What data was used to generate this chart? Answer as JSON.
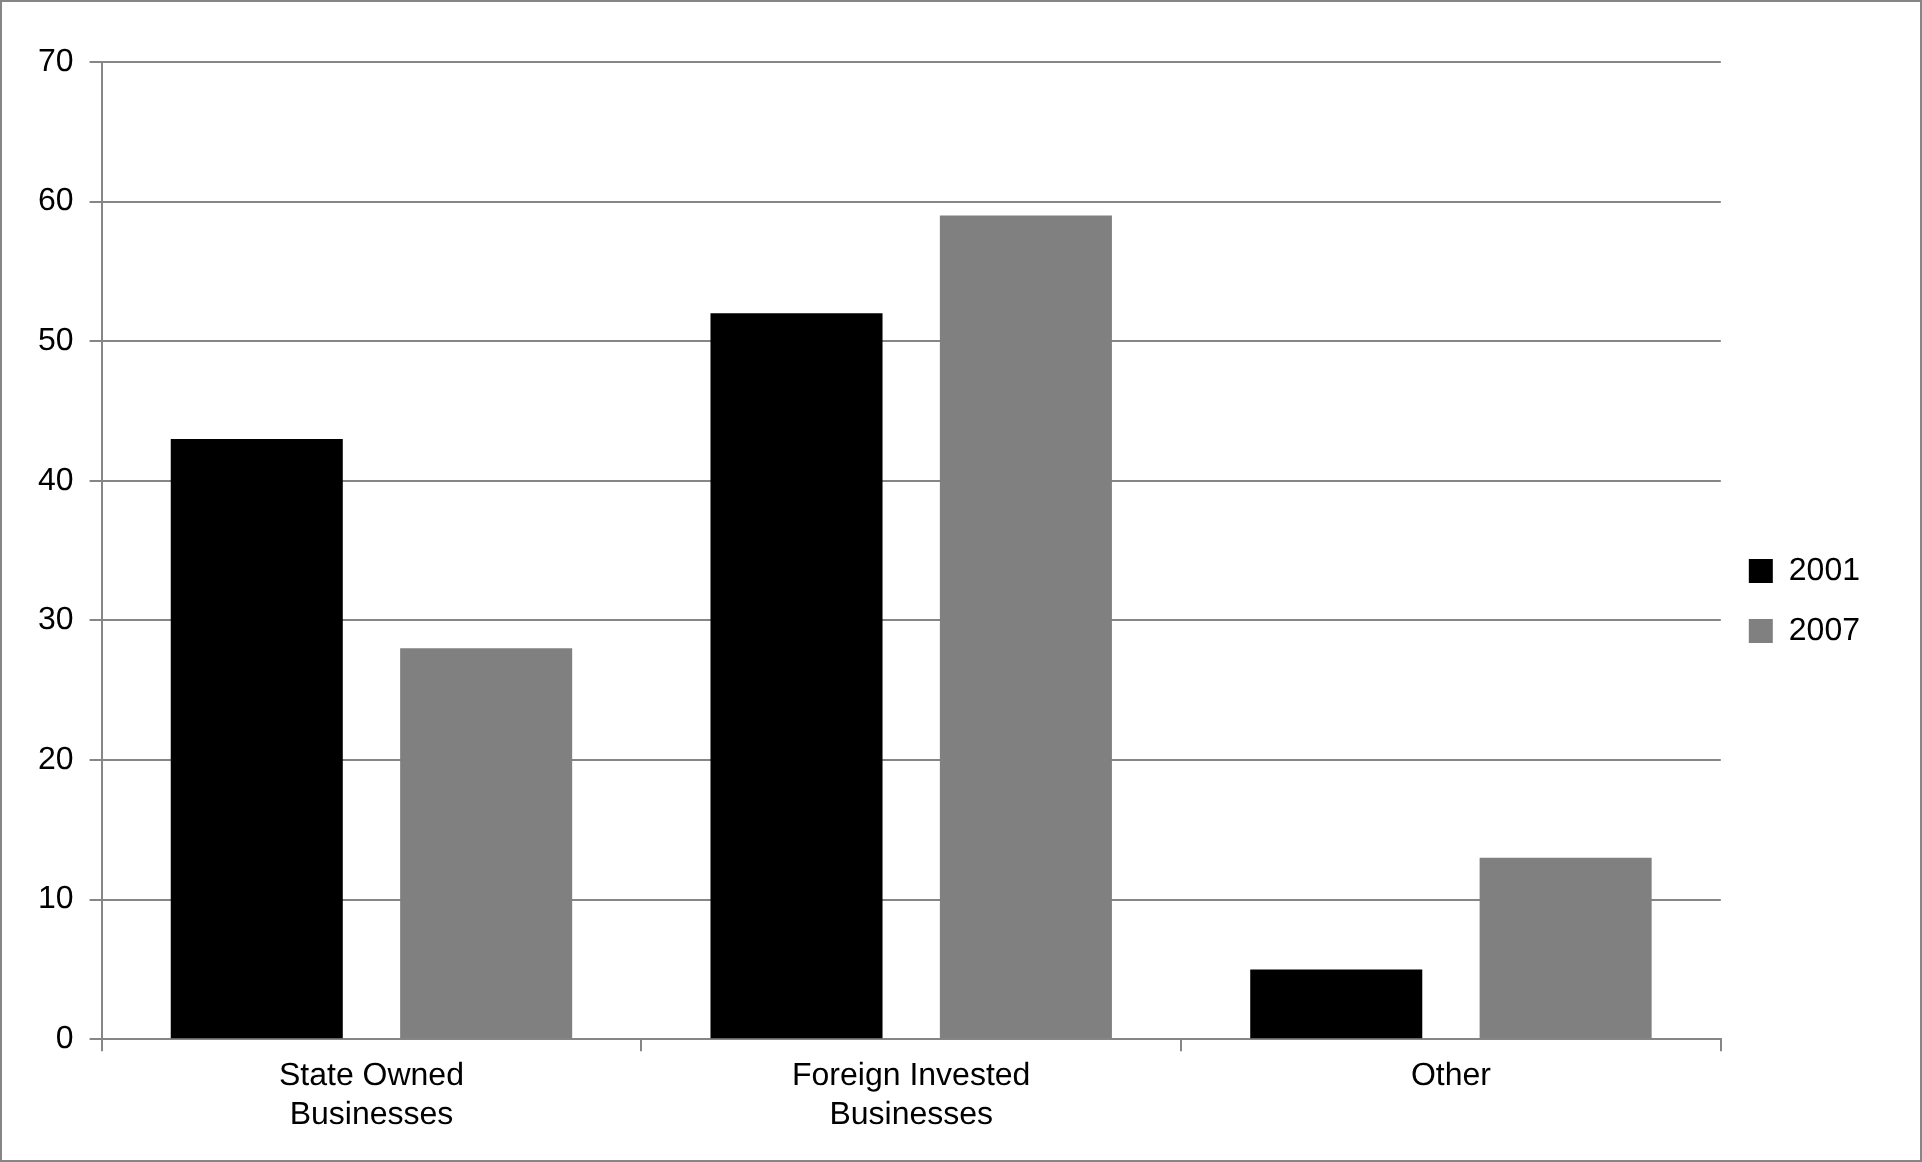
{
  "chart_data": {
    "type": "bar",
    "categories": [
      "State Owned Businesses",
      "Foreign Invested Businesses",
      "Other"
    ],
    "series": [
      {
        "name": "2001",
        "color": "#000000",
        "values": [
          43,
          52,
          5
        ]
      },
      {
        "name": "2007",
        "color": "#808080",
        "values": [
          28,
          59,
          13
        ]
      }
    ],
    "ylim": [
      0,
      70
    ],
    "yticks": [
      0,
      10,
      20,
      30,
      40,
      50,
      60,
      70
    ],
    "grid": "y",
    "legend": "right"
  }
}
